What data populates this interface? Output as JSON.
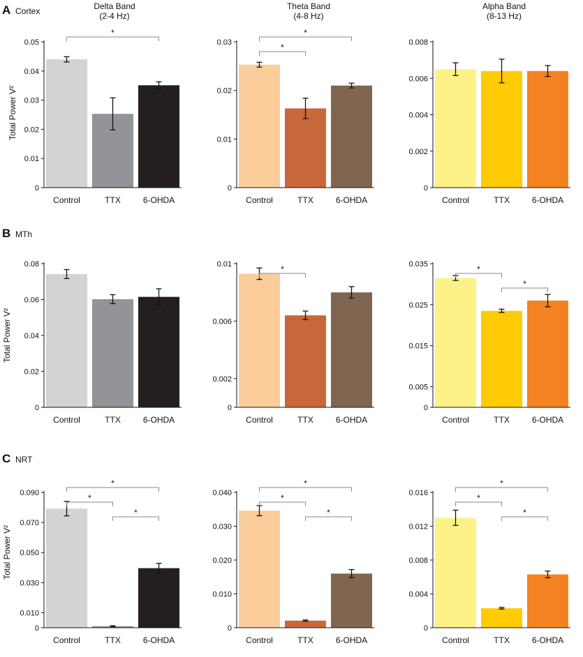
{
  "rows": [
    {
      "letter": "A",
      "name": "Cortex"
    },
    {
      "letter": "B",
      "name": "MTh"
    },
    {
      "letter": "C",
      "name": "NRT"
    }
  ],
  "bands": [
    {
      "title": "Delta Band",
      "range": "(2-4 Hz)"
    },
    {
      "title": "Theta Band",
      "range": "(4-8 Hz)"
    },
    {
      "title": "Alpha Band",
      "range": "(8-13 Hz)"
    }
  ],
  "ylabel": "Total Power V²",
  "categories": [
    "Control",
    "TTX",
    "6-OHDA"
  ],
  "colors": {
    "delta": [
      "#d1d3d4",
      "#929497",
      "#231f20"
    ],
    "theta": [
      "#fbcd9b",
      "#c8683a",
      "#806650"
    ],
    "alpha": [
      "#fcf287",
      "#ffcb05",
      "#f58220"
    ],
    "axis": "#111111",
    "bracket": "#8a8a8a"
  },
  "chart_data": [
    {
      "type": "bar",
      "row": "A",
      "band": "Delta Band",
      "categories": [
        "Control",
        "TTX",
        "6-OHDA"
      ],
      "ylabel": "Total Power V²",
      "values": [
        0.044,
        0.0253,
        0.0351
      ],
      "errors": [
        0.0009,
        0.0055,
        0.0012
      ],
      "ylim": [
        0,
        0.05
      ],
      "ticks": [
        0,
        0.01,
        0.02,
        0.03,
        0.04,
        0.05
      ],
      "tick_labels": [
        "0",
        "0.01",
        "0.02",
        "0.03",
        "0.04",
        "0.05"
      ],
      "significance": [
        {
          "from": "Control",
          "to": "6-OHDA",
          "label": "*"
        }
      ]
    },
    {
      "type": "bar",
      "row": "A",
      "band": "Theta Band",
      "categories": [
        "Control",
        "TTX",
        "6-OHDA"
      ],
      "values": [
        0.0253,
        0.0163,
        0.021
      ],
      "errors": [
        0.0005,
        0.0021,
        0.0005
      ],
      "ylim": [
        0,
        0.03
      ],
      "ticks": [
        0,
        0.01,
        0.02,
        0.03
      ],
      "tick_labels": [
        "0",
        "0.01",
        "0.02",
        "0.03"
      ],
      "significance": [
        {
          "from": "Control",
          "to": "6-OHDA",
          "label": "*"
        },
        {
          "from": "Control",
          "to": "TTX",
          "label": "*"
        }
      ]
    },
    {
      "type": "bar",
      "row": "A",
      "band": "Alpha Band",
      "categories": [
        "Control",
        "TTX",
        "6-OHDA"
      ],
      "values": [
        0.0065,
        0.0064,
        0.0064
      ],
      "errors": [
        0.00035,
        0.00065,
        0.0003
      ],
      "ylim": [
        0,
        0.008
      ],
      "ticks": [
        0,
        0.002,
        0.004,
        0.006,
        0.008
      ],
      "tick_labels": [
        "0",
        "0.002",
        "0.004",
        "0.006",
        "0.008"
      ],
      "significance": []
    },
    {
      "type": "bar",
      "row": "B",
      "band": "Delta Band",
      "categories": [
        "Control",
        "TTX",
        "6-OHDA"
      ],
      "ylabel": "Total Power V²",
      "values": [
        0.0742,
        0.0602,
        0.0615
      ],
      "errors": [
        0.0025,
        0.0025,
        0.0045
      ],
      "ylim": [
        0,
        0.08
      ],
      "ticks": [
        0,
        0.02,
        0.04,
        0.06,
        0.08
      ],
      "tick_labels": [
        "0",
        "0.02",
        "0.04",
        "0.06",
        "0.08"
      ],
      "significance": []
    },
    {
      "type": "bar",
      "row": "B",
      "band": "Theta Band",
      "categories": [
        "Control",
        "TTX",
        "6-OHDA"
      ],
      "values": [
        0.0093,
        0.0064,
        0.008
      ],
      "errors": [
        0.0004,
        0.0003,
        0.0004
      ],
      "ylim": [
        0,
        0.01
      ],
      "ticks": [
        0,
        0.002,
        0.006,
        0.01
      ],
      "tick_labels": [
        "0",
        "0.002",
        "0.006",
        "0.01"
      ],
      "significance": [
        {
          "from": "Control",
          "to": "TTX",
          "label": "*"
        }
      ]
    },
    {
      "type": "bar",
      "row": "B",
      "band": "Alpha Band",
      "categories": [
        "Control",
        "TTX",
        "6-OHDA"
      ],
      "values": [
        0.0315,
        0.0235,
        0.026
      ],
      "errors": [
        0.0006,
        0.0004,
        0.0015
      ],
      "ylim": [
        0,
        0.035
      ],
      "ticks": [
        0,
        0.005,
        0.015,
        0.025,
        0.035
      ],
      "tick_labels": [
        "0",
        "0.005",
        "0.015",
        "0.025",
        "0.035"
      ],
      "significance": [
        {
          "from": "Control",
          "to": "TTX",
          "label": "*"
        },
        {
          "from": "TTX",
          "to": "6-OHDA",
          "label": "*"
        }
      ]
    },
    {
      "type": "bar",
      "row": "C",
      "band": "Delta Band",
      "categories": [
        "Control",
        "TTX",
        "6-OHDA"
      ],
      "ylabel": "Total Power V²",
      "values": [
        0.0792,
        0.001,
        0.0396
      ],
      "errors": [
        0.0048,
        0.0003,
        0.0032
      ],
      "ylim": [
        0,
        0.09
      ],
      "ticks": [
        0,
        0.01,
        0.03,
        0.05,
        0.07,
        0.09
      ],
      "tick_labels": [
        "0",
        "0.010",
        "0.030",
        "0.050",
        "0.070",
        "0.090"
      ],
      "significance": [
        {
          "from": "Control",
          "to": "6-OHDA",
          "label": "*"
        },
        {
          "from": "Control",
          "to": "TTX",
          "label": "*"
        },
        {
          "from": "TTX",
          "to": "6-OHDA",
          "label": "*"
        }
      ]
    },
    {
      "type": "bar",
      "row": "C",
      "band": "Theta Band",
      "categories": [
        "Control",
        "TTX",
        "6-OHDA"
      ],
      "values": [
        0.0346,
        0.0021,
        0.016
      ],
      "errors": [
        0.0015,
        0.0002,
        0.0012
      ],
      "ylim": [
        0,
        0.04
      ],
      "ticks": [
        0,
        0.01,
        0.02,
        0.03,
        0.04
      ],
      "tick_labels": [
        "0",
        "0.010",
        "0.020",
        "0.030",
        "0.040"
      ],
      "significance": [
        {
          "from": "Control",
          "to": "6-OHDA",
          "label": "*"
        },
        {
          "from": "Control",
          "to": "TTX",
          "label": "*"
        },
        {
          "from": "TTX",
          "to": "6-OHDA",
          "label": "*"
        }
      ]
    },
    {
      "type": "bar",
      "row": "C",
      "band": "Alpha Band",
      "categories": [
        "Control",
        "TTX",
        "6-OHDA"
      ],
      "values": [
        0.013,
        0.0023,
        0.0063
      ],
      "errors": [
        0.0009,
        0.0001,
        0.0004
      ],
      "ylim": [
        0,
        0.016
      ],
      "ticks": [
        0,
        0.004,
        0.008,
        0.012,
        0.016
      ],
      "tick_labels": [
        "0",
        "0.004",
        "0.008",
        "0.012",
        "0.016"
      ],
      "significance": [
        {
          "from": "Control",
          "to": "6-OHDA",
          "label": "*"
        },
        {
          "from": "Control",
          "to": "TTX",
          "label": "*"
        },
        {
          "from": "TTX",
          "to": "6-OHDA",
          "label": "*"
        }
      ]
    }
  ]
}
